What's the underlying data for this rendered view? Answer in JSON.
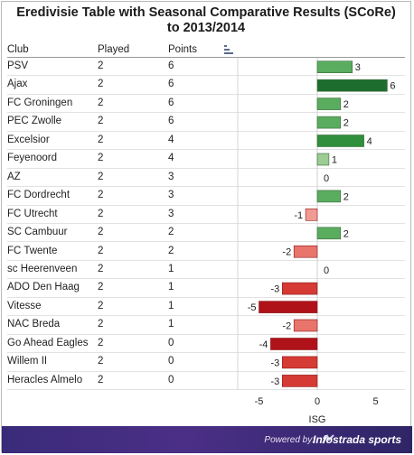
{
  "title_line1": "Eredivisie Table with Seasonal Comparative Results (SCoRe)",
  "title_line2": "to 2013/2014",
  "columns": {
    "club": "Club",
    "played": "Played",
    "points": "Points"
  },
  "footer": {
    "powered": "Powered by:",
    "brand": "Infostrada sports"
  },
  "colors": {
    "pos_strong": "#1d6e2e",
    "pos_mid": "#2f8f3c",
    "pos_light": "#5aac5f",
    "pos_pale": "#9ccb93",
    "neg_strong": "#b0121a",
    "neg_mid": "#d63a35",
    "neg_light": "#e8746c",
    "neg_pale": "#f19a93"
  },
  "chart_data": {
    "type": "bar",
    "orientation": "horizontal",
    "xlabel": "ISG",
    "xlim": [
      -6,
      6
    ],
    "xticks": [
      -5,
      0,
      5
    ],
    "categories": [
      "PSV",
      "Ajax",
      "FC Groningen",
      "PEC Zwolle",
      "Excelsior",
      "Feyenoord",
      "AZ",
      "FC Dordrecht",
      "FC Utrecht",
      "SC Cambuur",
      "FC Twente",
      "sc Heerenveen",
      "ADO Den Haag",
      "Vitesse",
      "NAC Breda",
      "Go Ahead Eagles",
      "Willem II",
      "Heracles Almelo"
    ],
    "played": [
      "2",
      "2",
      "2",
      "2",
      "2",
      "2",
      "2",
      "2",
      "2",
      "2",
      "2",
      "2",
      "2",
      "2",
      "2",
      "2",
      "2",
      "2"
    ],
    "points": [
      "6",
      "6",
      "6",
      "6",
      "4",
      "4",
      "3",
      "3",
      "3",
      "2",
      "2",
      "1",
      "1",
      "1",
      "1",
      "0",
      "0",
      "0"
    ],
    "values": [
      3,
      6,
      2,
      2,
      4,
      1,
      0,
      2,
      -1,
      2,
      -2,
      0,
      -3,
      -5,
      -2,
      -4,
      -3,
      -3
    ]
  }
}
